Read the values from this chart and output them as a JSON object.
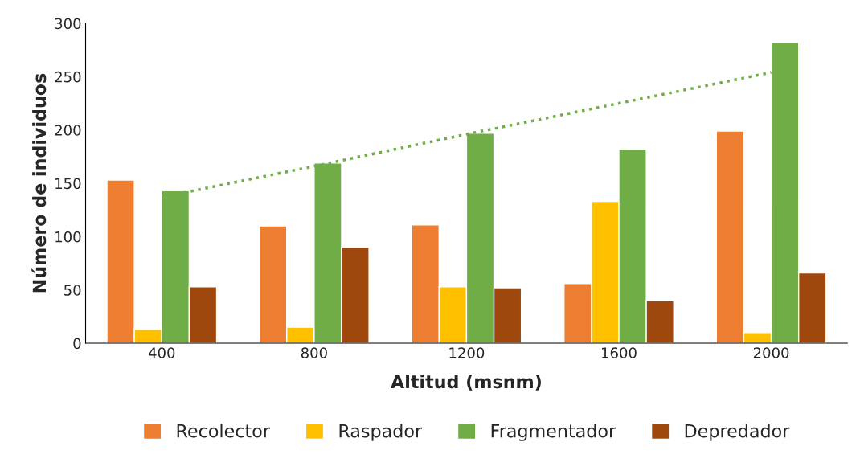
{
  "chart_data": {
    "type": "bar",
    "xlabel": "Altitud (msnm)",
    "ylabel": "Número de individuos",
    "categories": [
      "400",
      "800",
      "1200",
      "1600",
      "2000"
    ],
    "series": [
      {
        "name": "Recolector",
        "color": "#ed7d31",
        "values": [
          153,
          110,
          111,
          56,
          199
        ]
      },
      {
        "name": "Raspador",
        "color": "#ffc000",
        "values": [
          13,
          15,
          53,
          133,
          10
        ]
      },
      {
        "name": "Fragmentador",
        "color": "#70ad47",
        "values": [
          143,
          169,
          197,
          182,
          282
        ]
      },
      {
        "name": "Depredador",
        "color": "#9e480e",
        "values": [
          53,
          90,
          52,
          40,
          66
        ]
      },
      {
        "type": "line",
        "color": "#70ad47",
        "line_style": "dotted",
        "values": [
          137,
          166,
          196,
          225,
          254
        ]
      }
    ],
    "ylim": [
      0,
      300
    ],
    "yticks": [
      0,
      50,
      100,
      150,
      200,
      250,
      300
    ],
    "grid": false,
    "legend": "bottom"
  }
}
